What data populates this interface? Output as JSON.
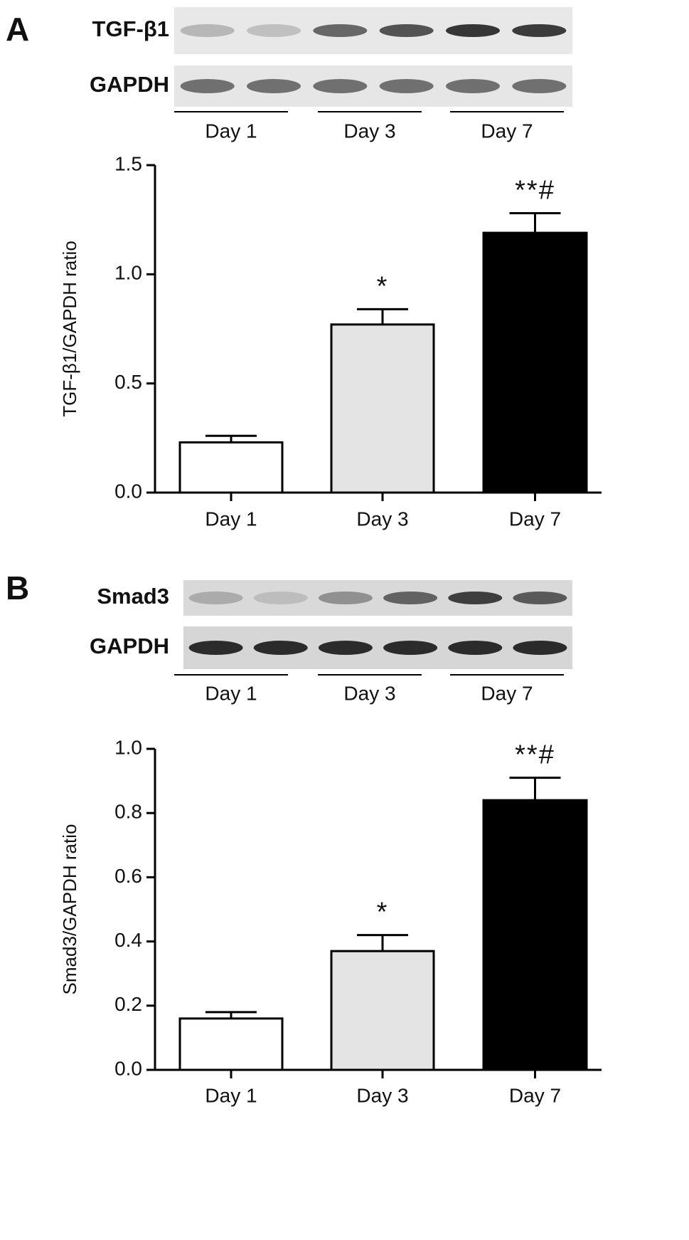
{
  "chart_data": [
    {
      "type": "bar",
      "panel": "A",
      "ylabel": "TGF-β1/GAPDH ratio",
      "blot": {
        "rows": [
          "TGF-β1",
          "GAPDH"
        ],
        "groups": [
          "Day 1",
          "Day 3",
          "Day 7"
        ]
      },
      "categories": [
        "Day 1",
        "Day 3",
        "Day 7"
      ],
      "values": [
        0.23,
        0.77,
        1.19
      ],
      "errors": [
        0.03,
        0.07,
        0.09
      ],
      "annotations": [
        null,
        "*",
        "**#"
      ],
      "colors": [
        "#ffffff",
        "#e4e4e4",
        "#000000"
      ],
      "ylim": [
        0,
        1.5
      ],
      "yticks": [
        {
          "value": 0,
          "label": "0.0"
        },
        {
          "value": 0.5,
          "label": "0.5"
        },
        {
          "value": 1,
          "label": "1.0"
        },
        {
          "value": 1.5,
          "label": "1.5"
        }
      ]
    },
    {
      "type": "bar",
      "panel": "B",
      "ylabel": "Smad3/GAPDH ratio",
      "blot": {
        "rows": [
          "Smad3",
          "GAPDH"
        ],
        "groups": [
          "Day 1",
          "Day 3",
          "Day 7"
        ]
      },
      "categories": [
        "Day 1",
        "Day 3",
        "Day 7"
      ],
      "values": [
        0.16,
        0.37,
        0.84
      ],
      "errors": [
        0.02,
        0.05,
        0.07
      ],
      "annotations": [
        null,
        "*",
        "**#"
      ],
      "colors": [
        "#ffffff",
        "#e4e4e4",
        "#000000"
      ],
      "ylim": [
        0,
        1
      ],
      "yticks": [
        {
          "value": 0,
          "label": "0.0"
        },
        {
          "value": 0.2,
          "label": "0.2"
        },
        {
          "value": 0.4,
          "label": "0.4"
        },
        {
          "value": 0.6,
          "label": "0.6"
        },
        {
          "value": 0.8,
          "label": "0.8"
        },
        {
          "value": 1,
          "label": "1.0"
        }
      ]
    }
  ]
}
